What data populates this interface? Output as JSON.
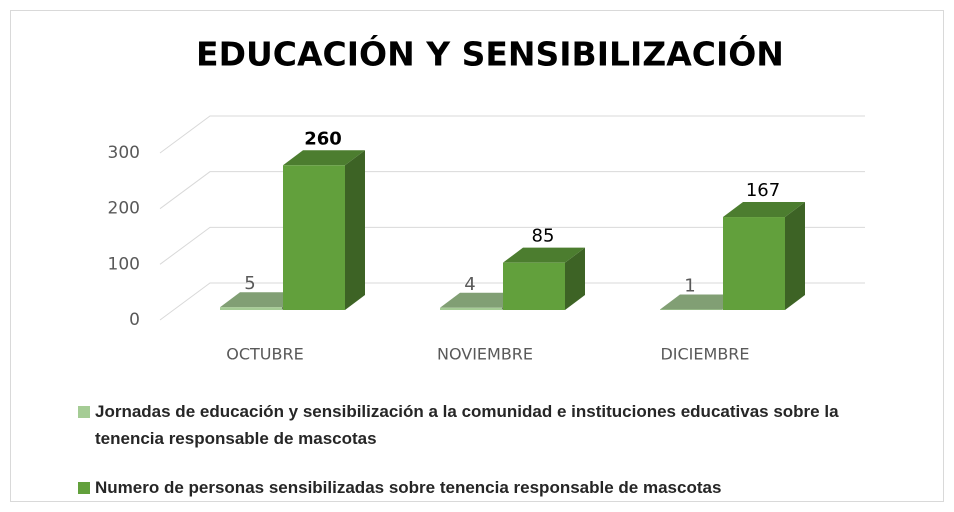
{
  "chart_data": {
    "type": "bar3d",
    "title": "EDUCACIÓN Y SENSIBILIZACIÓN",
    "categories": [
      "OCTUBRE",
      "NOVIEMBRE",
      "DICIEMBRE"
    ],
    "series": [
      {
        "name": "Jornadas de educación y sensibilización a la comunidad e instituciones educativas sobre la tenencia responsable de mascotas",
        "color": "#a5cc95",
        "values": [
          5,
          4,
          1
        ]
      },
      {
        "name": "Numero de personas sensibilizadas sobre tenencia responsable de mascotas",
        "color": "#62a03c",
        "values": [
          260,
          85,
          167
        ]
      }
    ],
    "ylim": [
      0,
      300
    ],
    "yticks": [
      0,
      100,
      200,
      300
    ],
    "grid": true,
    "legend": "bottom"
  }
}
